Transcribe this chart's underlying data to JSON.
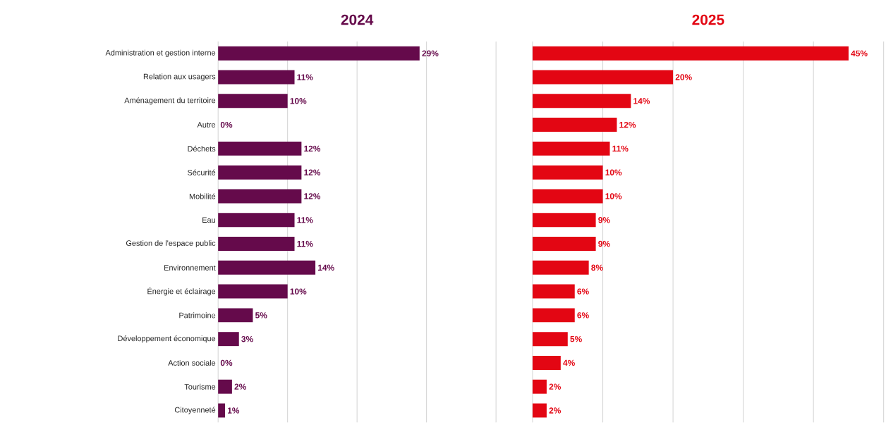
{
  "chart_data": [
    {
      "type": "bar",
      "orientation": "horizontal",
      "title": "2024",
      "categories": [
        "Administration et gestion interne",
        "Relation aux usagers",
        "Aménagement du territoire",
        "Autre",
        "Déchets",
        "Sécurité",
        "Mobilité",
        "Eau",
        "Gestion de l'espace public",
        "Environnement",
        "Énergie et éclairage",
        "Patrimoine",
        "Développement économique",
        "Action sociale",
        "Tourisme",
        "Citoyenneté"
      ],
      "values": [
        29,
        11,
        10,
        0,
        12,
        12,
        12,
        11,
        11,
        14,
        10,
        5,
        3,
        0,
        2,
        1
      ],
      "value_labels": [
        "29%",
        "11%",
        "10%",
        "0%",
        "12%",
        "12%",
        "12%",
        "11%",
        "11%",
        "14%",
        "10%",
        "5%",
        "3%",
        "0%",
        "2%",
        "1%"
      ],
      "color": "#650a4b",
      "xlim": [
        0,
        40
      ],
      "xticks": [
        {
          "value": 0,
          "label": null
        },
        {
          "value": 10,
          "label": null
        },
        {
          "value": 20,
          "label": null
        },
        {
          "value": 30,
          "label": null
        },
        {
          "value": 40,
          "label": null
        }
      ],
      "grid": "x",
      "tick_labels": "y"
    },
    {
      "type": "bar",
      "orientation": "horizontal",
      "title": "2025",
      "categories": [
        null,
        null,
        null,
        null,
        null,
        null,
        null,
        null,
        null,
        null,
        null,
        null,
        null,
        null,
        null,
        null
      ],
      "values": [
        45,
        20,
        14,
        12,
        11,
        10,
        10,
        9,
        9,
        8,
        6,
        6,
        5,
        4,
        2,
        2
      ],
      "value_labels": [
        "45%",
        "20%",
        "14%",
        "12%",
        "11%",
        "10%",
        "10%",
        "9%",
        "9%",
        "8%",
        "6%",
        "6%",
        "5%",
        "4%",
        "2%",
        "2%"
      ],
      "color": "#e30613",
      "xlim": [
        0,
        50
      ],
      "xticks": [
        {
          "value": 0,
          "label": null
        },
        {
          "value": 10,
          "label": null
        },
        {
          "value": 20,
          "label": null
        },
        {
          "value": 30,
          "label": null
        },
        {
          "value": 40,
          "label": null
        },
        {
          "value": 50,
          "label": null
        }
      ],
      "grid": "x",
      "tick_labels": false
    }
  ]
}
